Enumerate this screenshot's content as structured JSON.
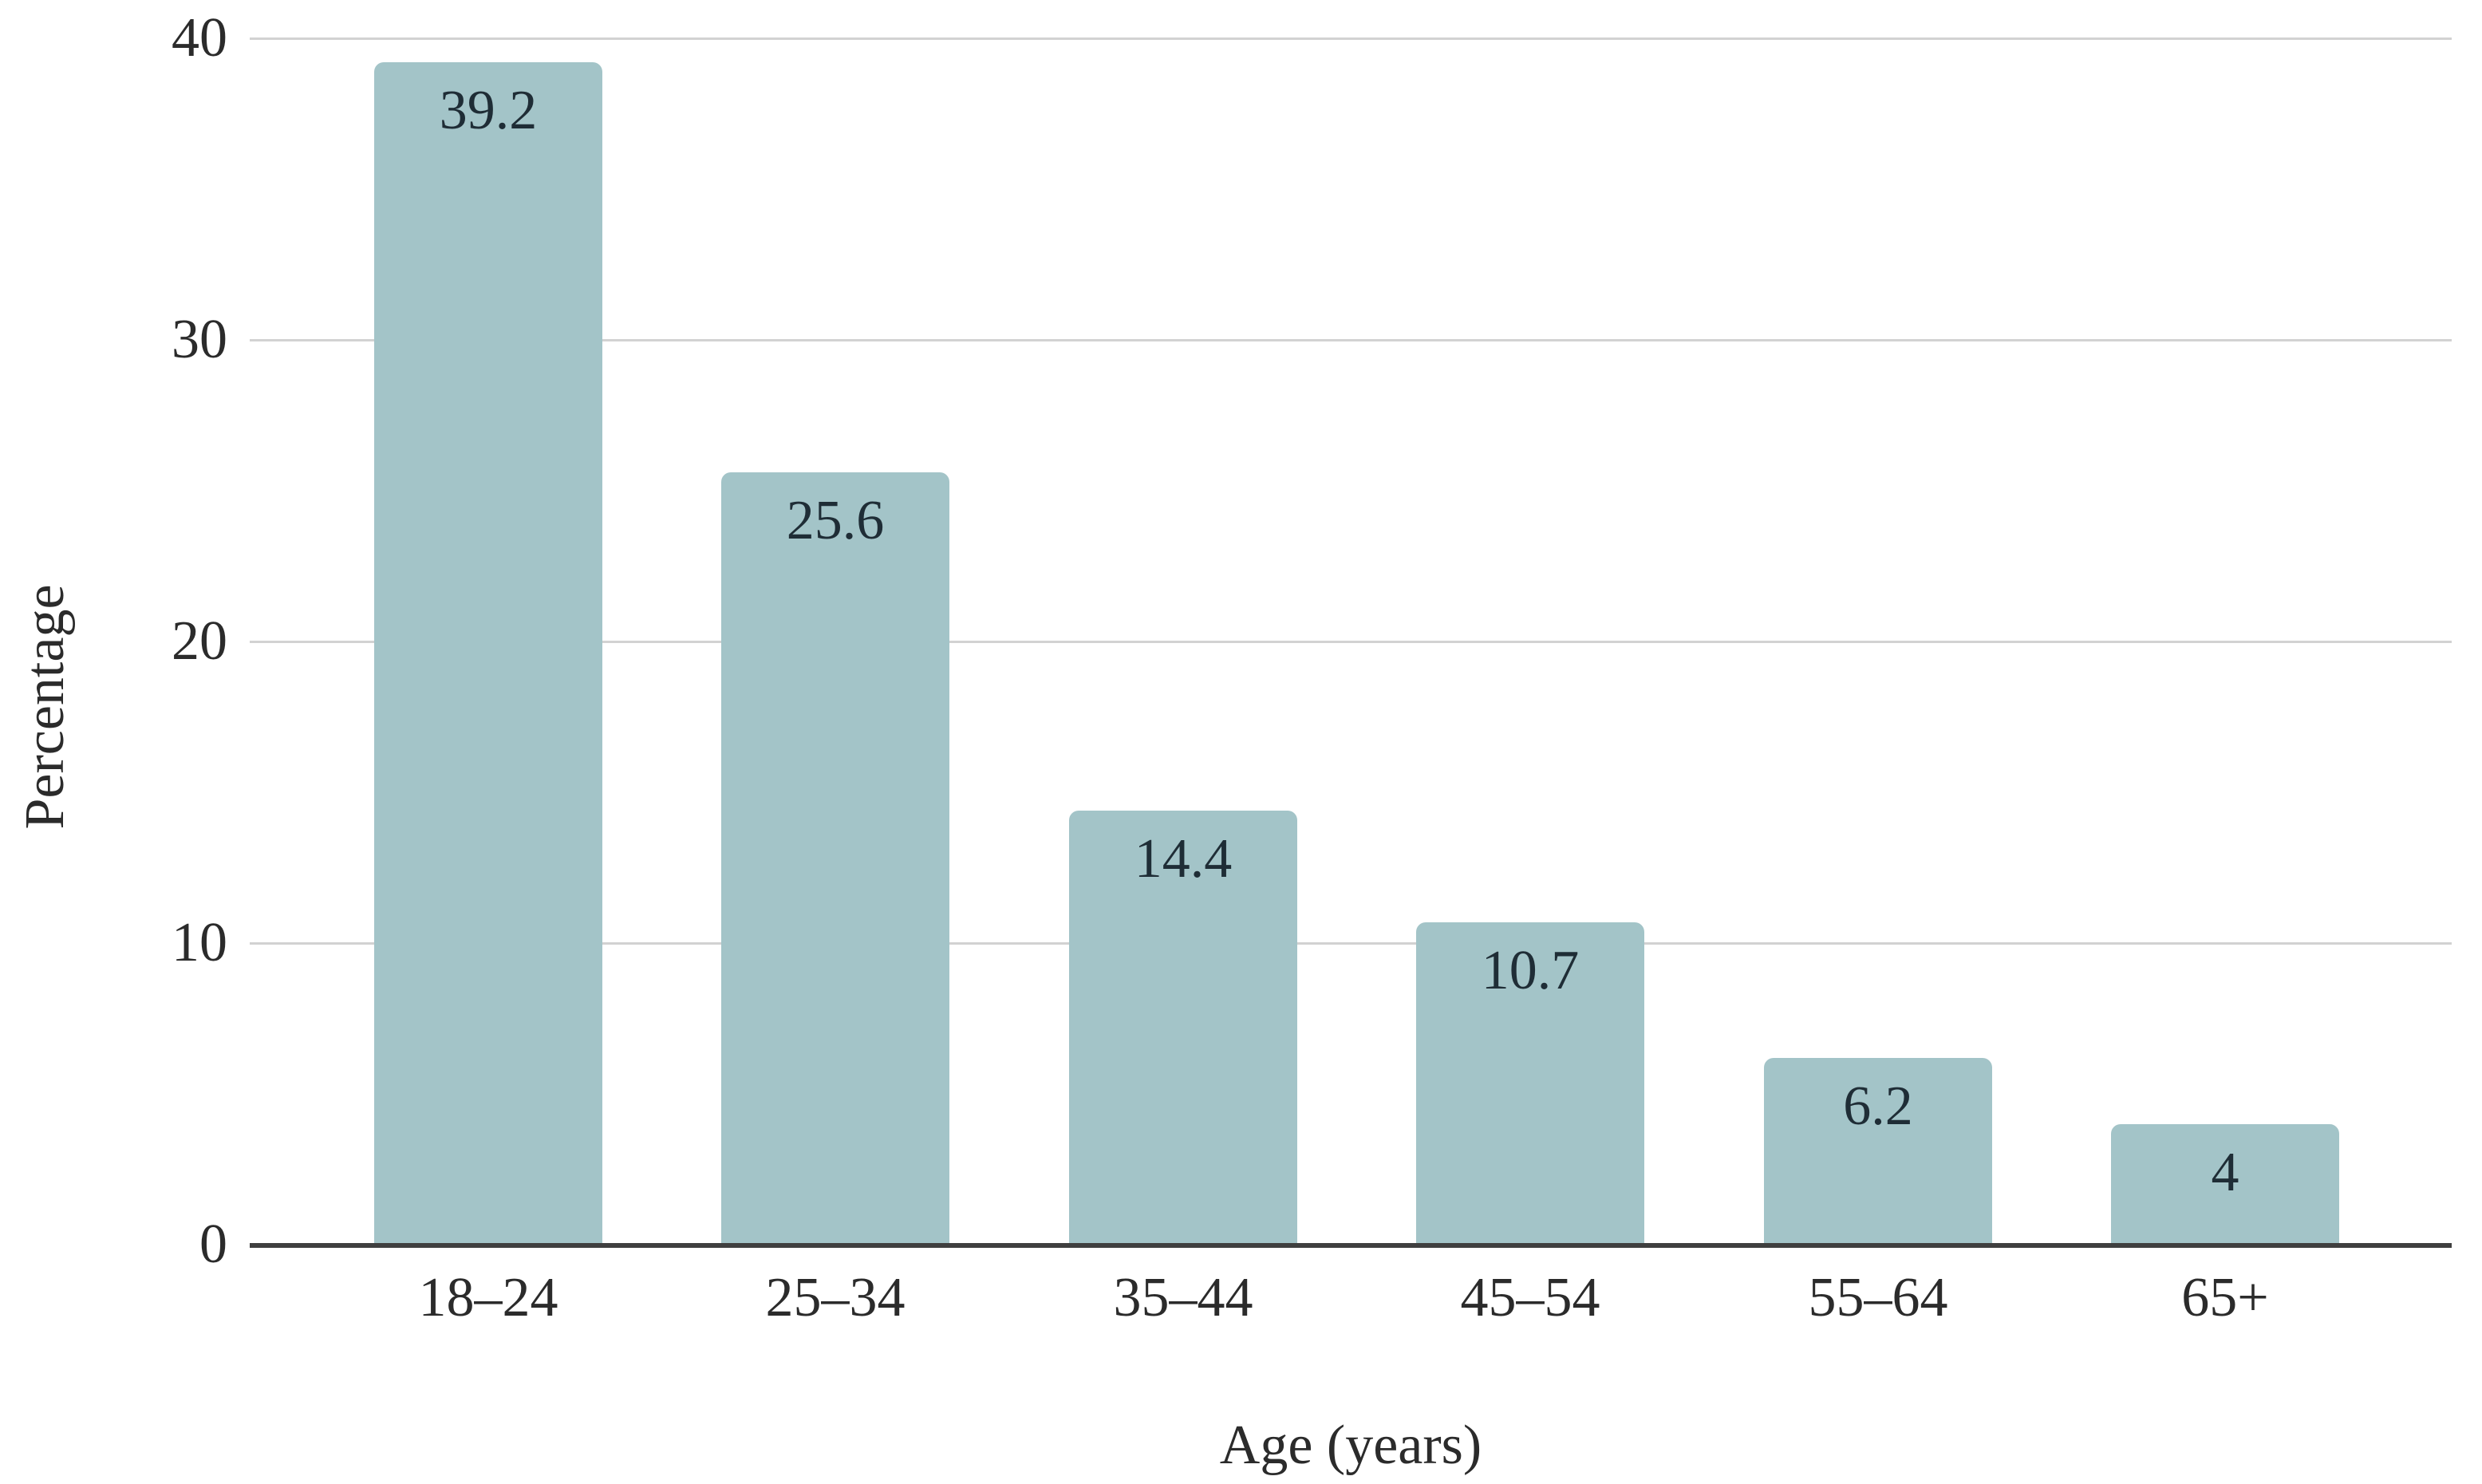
{
  "chart_data": {
    "type": "bar",
    "title": "",
    "categories": [
      "18–24",
      "25–34",
      "35–44",
      "45–54",
      "55–64",
      "65+"
    ],
    "values": [
      39.2,
      25.6,
      14.4,
      10.7,
      6.2,
      4
    ],
    "value_labels": [
      "39.2",
      "25.6",
      "14.4",
      "10.7",
      "6.2",
      "4"
    ],
    "xlabel": "Age (years)",
    "ylabel": "Percentage",
    "ylim": [
      0,
      40
    ],
    "yticks": [
      0,
      10,
      20,
      30,
      40
    ],
    "grid": "horizontal-gridlines-at-each-ytick",
    "legend": "none",
    "value_label_position": "inside-top-of-bar",
    "colors": {
      "bar_fill": "#a3c4c8",
      "gridline": "#d2d2d2",
      "axis_line": "#3f3f3f",
      "axis_text": "#2b2b2b",
      "value_label_text": "#1f2d36",
      "background": "#ffffff"
    }
  }
}
